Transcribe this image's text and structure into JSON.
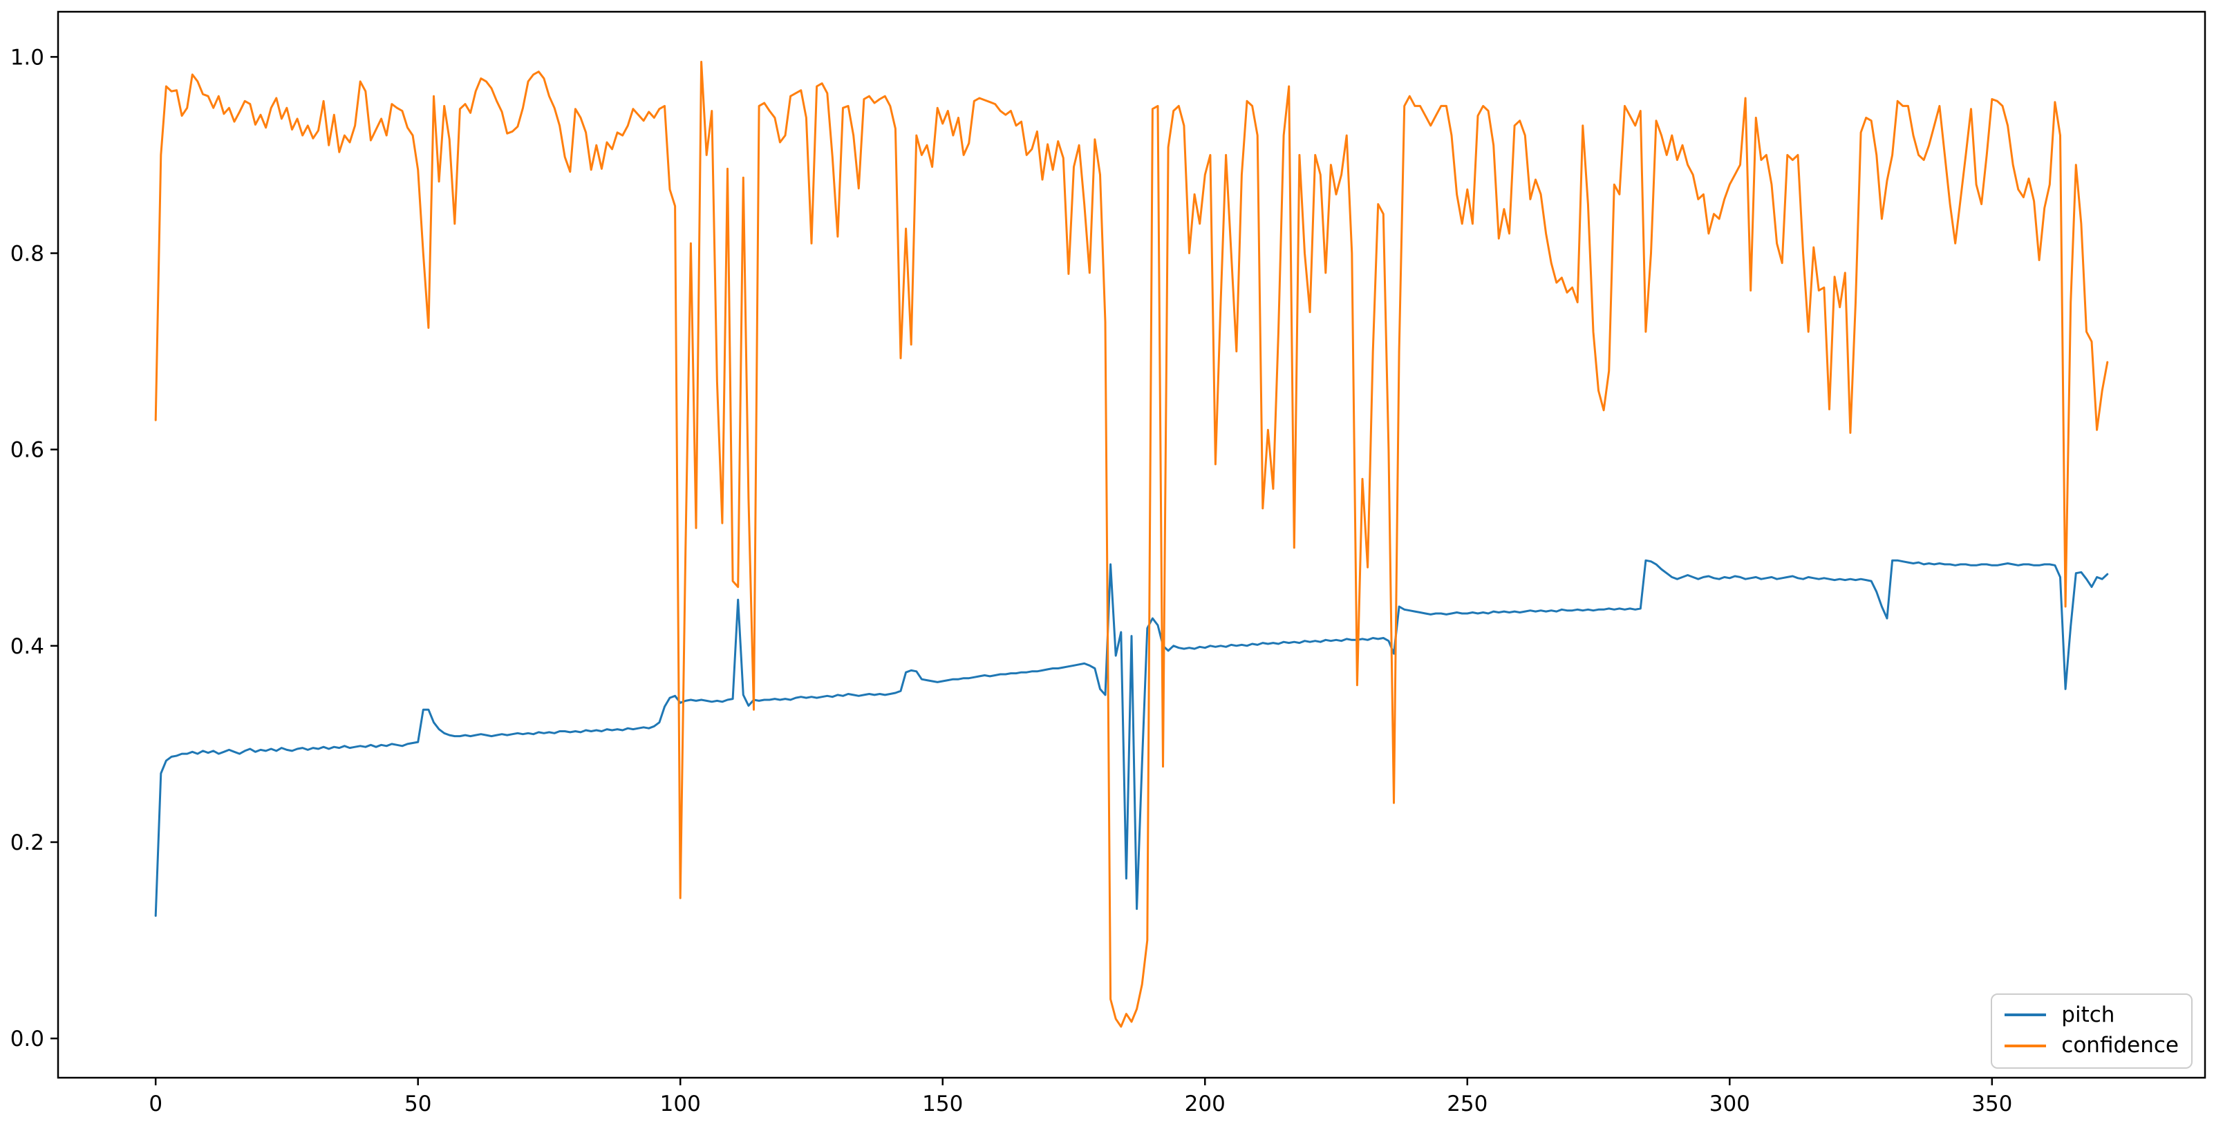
{
  "chart_data": {
    "type": "line",
    "title": "",
    "xlabel": "",
    "ylabel": "",
    "grid": false,
    "background_color": "#ffffff",
    "axes_edge_color": "#000000",
    "xlim": [
      -18.6,
      390.6
    ],
    "ylim": [
      -0.04,
      1.046
    ],
    "xticks": [
      {
        "v": 0,
        "label": "0"
      },
      {
        "v": 50,
        "label": "50"
      },
      {
        "v": 100,
        "label": "100"
      },
      {
        "v": 150,
        "label": "150"
      },
      {
        "v": 200,
        "label": "200"
      },
      {
        "v": 250,
        "label": "250"
      },
      {
        "v": 300,
        "label": "300"
      },
      {
        "v": 350,
        "label": "350"
      }
    ],
    "yticks": [
      {
        "v": 0.0,
        "label": "0.0"
      },
      {
        "v": 0.2,
        "label": "0.2"
      },
      {
        "v": 0.4,
        "label": "0.4"
      },
      {
        "v": 0.6,
        "label": "0.6"
      },
      {
        "v": 0.8,
        "label": "0.8"
      },
      {
        "v": 1.0,
        "label": "1.0"
      }
    ],
    "legend": {
      "location": "lower right"
    },
    "x": [
      0,
      1,
      2,
      3,
      4,
      5,
      6,
      7,
      8,
      9,
      10,
      11,
      12,
      13,
      14,
      15,
      16,
      17,
      18,
      19,
      20,
      21,
      22,
      23,
      24,
      25,
      26,
      27,
      28,
      29,
      30,
      31,
      32,
      33,
      34,
      35,
      36,
      37,
      38,
      39,
      40,
      41,
      42,
      43,
      44,
      45,
      46,
      47,
      48,
      49,
      50,
      51,
      52,
      53,
      54,
      55,
      56,
      57,
      58,
      59,
      60,
      61,
      62,
      63,
      64,
      65,
      66,
      67,
      68,
      69,
      70,
      71,
      72,
      73,
      74,
      75,
      76,
      77,
      78,
      79,
      80,
      81,
      82,
      83,
      84,
      85,
      86,
      87,
      88,
      89,
      90,
      91,
      92,
      93,
      94,
      95,
      96,
      97,
      98,
      99,
      100,
      101,
      102,
      103,
      104,
      105,
      106,
      107,
      108,
      109,
      110,
      111,
      112,
      113,
      114,
      115,
      116,
      117,
      118,
      119,
      120,
      121,
      122,
      123,
      124,
      125,
      126,
      127,
      128,
      129,
      130,
      131,
      132,
      133,
      134,
      135,
      136,
      137,
      138,
      139,
      140,
      141,
      142,
      143,
      144,
      145,
      146,
      147,
      148,
      149,
      150,
      151,
      152,
      153,
      154,
      155,
      156,
      157,
      158,
      159,
      160,
      161,
      162,
      163,
      164,
      165,
      166,
      167,
      168,
      169,
      170,
      171,
      172,
      173,
      174,
      175,
      176,
      177,
      178,
      179,
      180,
      181,
      182,
      183,
      184,
      185,
      186,
      187,
      188,
      189,
      190,
      191,
      192,
      193,
      194,
      195,
      196,
      197,
      198,
      199,
      200,
      201,
      202,
      203,
      204,
      205,
      206,
      207,
      208,
      209,
      210,
      211,
      212,
      213,
      214,
      215,
      216,
      217,
      218,
      219,
      220,
      221,
      222,
      223,
      224,
      225,
      226,
      227,
      228,
      229,
      230,
      231,
      232,
      233,
      234,
      235,
      236,
      237,
      238,
      239,
      240,
      241,
      242,
      243,
      244,
      245,
      246,
      247,
      248,
      249,
      250,
      251,
      252,
      253,
      254,
      255,
      256,
      257,
      258,
      259,
      260,
      261,
      262,
      263,
      264,
      265,
      266,
      267,
      268,
      269,
      270,
      271,
      272,
      273,
      274,
      275,
      276,
      277,
      278,
      279,
      280,
      281,
      282,
      283,
      284,
      285,
      286,
      287,
      288,
      289,
      290,
      291,
      292,
      293,
      294,
      295,
      296,
      297,
      298,
      299,
      300,
      301,
      302,
      303,
      304,
      305,
      306,
      307,
      308,
      309,
      310,
      311,
      312,
      313,
      314,
      315,
      316,
      317,
      318,
      319,
      320,
      321,
      322,
      323,
      324,
      325,
      326,
      327,
      328,
      329,
      330,
      331,
      332,
      333,
      334,
      335,
      336,
      337,
      338,
      339,
      340,
      341,
      342,
      343,
      344,
      345,
      346,
      347,
      348,
      349,
      350,
      351,
      352,
      353,
      354,
      355,
      356,
      357,
      358,
      359,
      360,
      361,
      362,
      363,
      364,
      365,
      366,
      367,
      368,
      369,
      370,
      371,
      372
    ],
    "series": [
      {
        "name": "pitch",
        "color": "#1f77b4",
        "values": [
          0.125,
          0.27,
          0.283,
          0.287,
          0.288,
          0.29,
          0.29,
          0.292,
          0.29,
          0.293,
          0.291,
          0.293,
          0.29,
          0.292,
          0.294,
          0.292,
          0.29,
          0.293,
          0.295,
          0.292,
          0.294,
          0.293,
          0.295,
          0.293,
          0.296,
          0.294,
          0.293,
          0.295,
          0.296,
          0.294,
          0.296,
          0.295,
          0.297,
          0.295,
          0.297,
          0.296,
          0.298,
          0.296,
          0.297,
          0.298,
          0.297,
          0.299,
          0.297,
          0.299,
          0.298,
          0.3,
          0.299,
          0.298,
          0.3,
          0.301,
          0.302,
          0.335,
          0.335,
          0.322,
          0.315,
          0.311,
          0.309,
          0.308,
          0.308,
          0.309,
          0.308,
          0.309,
          0.31,
          0.309,
          0.308,
          0.309,
          0.31,
          0.309,
          0.31,
          0.311,
          0.31,
          0.311,
          0.31,
          0.312,
          0.311,
          0.312,
          0.311,
          0.313,
          0.313,
          0.312,
          0.313,
          0.312,
          0.314,
          0.313,
          0.314,
          0.313,
          0.315,
          0.314,
          0.315,
          0.314,
          0.316,
          0.315,
          0.316,
          0.317,
          0.316,
          0.318,
          0.322,
          0.338,
          0.347,
          0.349,
          0.342,
          0.344,
          0.345,
          0.344,
          0.345,
          0.344,
          0.343,
          0.344,
          0.343,
          0.345,
          0.346,
          0.447,
          0.35,
          0.339,
          0.345,
          0.344,
          0.345,
          0.345,
          0.346,
          0.345,
          0.346,
          0.345,
          0.347,
          0.348,
          0.347,
          0.348,
          0.347,
          0.348,
          0.349,
          0.348,
          0.35,
          0.349,
          0.351,
          0.35,
          0.349,
          0.35,
          0.351,
          0.35,
          0.351,
          0.35,
          0.351,
          0.352,
          0.354,
          0.373,
          0.375,
          0.374,
          0.366,
          0.365,
          0.364,
          0.363,
          0.364,
          0.365,
          0.366,
          0.366,
          0.367,
          0.367,
          0.368,
          0.369,
          0.37,
          0.369,
          0.37,
          0.371,
          0.371,
          0.372,
          0.372,
          0.373,
          0.373,
          0.374,
          0.374,
          0.375,
          0.376,
          0.377,
          0.377,
          0.378,
          0.379,
          0.38,
          0.381,
          0.382,
          0.38,
          0.377,
          0.356,
          0.35,
          0.483,
          0.39,
          0.414,
          0.163,
          0.41,
          0.132,
          0.28,
          0.418,
          0.428,
          0.421,
          0.4,
          0.395,
          0.4,
          0.398,
          0.397,
          0.398,
          0.397,
          0.399,
          0.398,
          0.4,
          0.399,
          0.4,
          0.399,
          0.401,
          0.4,
          0.401,
          0.4,
          0.402,
          0.401,
          0.403,
          0.402,
          0.403,
          0.402,
          0.404,
          0.403,
          0.404,
          0.403,
          0.405,
          0.404,
          0.405,
          0.404,
          0.406,
          0.405,
          0.406,
          0.405,
          0.407,
          0.406,
          0.406,
          0.407,
          0.406,
          0.408,
          0.407,
          0.408,
          0.405,
          0.392,
          0.44,
          0.437,
          0.436,
          0.435,
          0.434,
          0.433,
          0.432,
          0.433,
          0.433,
          0.432,
          0.433,
          0.434,
          0.433,
          0.433,
          0.434,
          0.433,
          0.434,
          0.433,
          0.435,
          0.434,
          0.435,
          0.434,
          0.435,
          0.434,
          0.435,
          0.436,
          0.435,
          0.436,
          0.435,
          0.436,
          0.435,
          0.437,
          0.436,
          0.436,
          0.437,
          0.436,
          0.437,
          0.436,
          0.437,
          0.437,
          0.438,
          0.437,
          0.438,
          0.437,
          0.438,
          0.437,
          0.438,
          0.487,
          0.486,
          0.483,
          0.478,
          0.474,
          0.47,
          0.468,
          0.47,
          0.472,
          0.47,
          0.468,
          0.47,
          0.471,
          0.469,
          0.468,
          0.47,
          0.469,
          0.471,
          0.47,
          0.468,
          0.469,
          0.47,
          0.468,
          0.469,
          0.47,
          0.468,
          0.469,
          0.47,
          0.471,
          0.469,
          0.468,
          0.47,
          0.469,
          0.468,
          0.469,
          0.468,
          0.467,
          0.468,
          0.467,
          0.468,
          0.467,
          0.468,
          0.467,
          0.466,
          0.455,
          0.44,
          0.428,
          0.487,
          0.487,
          0.486,
          0.485,
          0.484,
          0.485,
          0.483,
          0.484,
          0.483,
          0.484,
          0.483,
          0.483,
          0.482,
          0.483,
          0.483,
          0.482,
          0.482,
          0.483,
          0.483,
          0.482,
          0.482,
          0.483,
          0.484,
          0.483,
          0.482,
          0.483,
          0.483,
          0.482,
          0.482,
          0.483,
          0.483,
          0.482,
          0.47,
          0.356,
          0.42,
          0.474,
          0.475,
          0.468,
          0.46,
          0.47,
          0.468,
          0.473
        ]
      },
      {
        "name": "confidence",
        "color": "#ff7f0e",
        "values": [
          0.63,
          0.9,
          0.97,
          0.965,
          0.966,
          0.94,
          0.948,
          0.982,
          0.975,
          0.962,
          0.96,
          0.948,
          0.96,
          0.942,
          0.948,
          0.934,
          0.944,
          0.955,
          0.952,
          0.931,
          0.941,
          0.928,
          0.948,
          0.958,
          0.937,
          0.948,
          0.926,
          0.937,
          0.92,
          0.93,
          0.917,
          0.925,
          0.955,
          0.91,
          0.941,
          0.903,
          0.92,
          0.913,
          0.93,
          0.975,
          0.965,
          0.915,
          0.926,
          0.937,
          0.92,
          0.952,
          0.948,
          0.945,
          0.928,
          0.92,
          0.885,
          0.8,
          0.724,
          0.96,
          0.873,
          0.95,
          0.916,
          0.83,
          0.947,
          0.952,
          0.943,
          0.965,
          0.978,
          0.975,
          0.968,
          0.955,
          0.944,
          0.922,
          0.924,
          0.929,
          0.948,
          0.975,
          0.982,
          0.985,
          0.978,
          0.96,
          0.948,
          0.93,
          0.898,
          0.883,
          0.947,
          0.938,
          0.923,
          0.885,
          0.91,
          0.886,
          0.913,
          0.906,
          0.923,
          0.92,
          0.93,
          0.947,
          0.941,
          0.935,
          0.944,
          0.938,
          0.947,
          0.95,
          0.865,
          0.848,
          0.143,
          0.5,
          0.81,
          0.52,
          0.995,
          0.9,
          0.945,
          0.669,
          0.525,
          0.886,
          0.466,
          0.46,
          0.877,
          0.55,
          0.335,
          0.95,
          0.953,
          0.945,
          0.938,
          0.913,
          0.92,
          0.96,
          0.963,
          0.966,
          0.938,
          0.81,
          0.97,
          0.973,
          0.963,
          0.898,
          0.817,
          0.948,
          0.95,
          0.92,
          0.866,
          0.957,
          0.96,
          0.953,
          0.957,
          0.96,
          0.95,
          0.927,
          0.693,
          0.825,
          0.707,
          0.92,
          0.9,
          0.91,
          0.888,
          0.948,
          0.932,
          0.945,
          0.92,
          0.938,
          0.9,
          0.912,
          0.955,
          0.958,
          0.956,
          0.954,
          0.952,
          0.945,
          0.941,
          0.945,
          0.93,
          0.934,
          0.9,
          0.906,
          0.924,
          0.875,
          0.911,
          0.885,
          0.914,
          0.897,
          0.779,
          0.888,
          0.91,
          0.85,
          0.78,
          0.916,
          0.88,
          0.73,
          0.04,
          0.02,
          0.012,
          0.025,
          0.017,
          0.03,
          0.055,
          0.1,
          0.947,
          0.95,
          0.277,
          0.908,
          0.945,
          0.95,
          0.93,
          0.8,
          0.86,
          0.83,
          0.88,
          0.9,
          0.585,
          0.75,
          0.9,
          0.8,
          0.7,
          0.88,
          0.955,
          0.95,
          0.92,
          0.54,
          0.62,
          0.56,
          0.72,
          0.92,
          0.97,
          0.5,
          0.9,
          0.8,
          0.74,
          0.9,
          0.88,
          0.78,
          0.89,
          0.86,
          0.88,
          0.92,
          0.8,
          0.36,
          0.57,
          0.48,
          0.7,
          0.85,
          0.84,
          0.6,
          0.24,
          0.7,
          0.95,
          0.96,
          0.95,
          0.95,
          0.94,
          0.93,
          0.94,
          0.95,
          0.95,
          0.92,
          0.86,
          0.83,
          0.865,
          0.83,
          0.94,
          0.95,
          0.945,
          0.91,
          0.815,
          0.845,
          0.82,
          0.93,
          0.935,
          0.92,
          0.855,
          0.875,
          0.86,
          0.82,
          0.79,
          0.77,
          0.775,
          0.76,
          0.765,
          0.75,
          0.93,
          0.85,
          0.72,
          0.66,
          0.64,
          0.68,
          0.87,
          0.86,
          0.95,
          0.94,
          0.93,
          0.945,
          0.72,
          0.8,
          0.935,
          0.92,
          0.9,
          0.92,
          0.895,
          0.91,
          0.89,
          0.88,
          0.855,
          0.86,
          0.82,
          0.84,
          0.835,
          0.855,
          0.87,
          0.88,
          0.89,
          0.958,
          0.762,
          0.938,
          0.895,
          0.9,
          0.87,
          0.81,
          0.79,
          0.9,
          0.895,
          0.9,
          0.8,
          0.72,
          0.806,
          0.762,
          0.765,
          0.641,
          0.776,
          0.745,
          0.78,
          0.617,
          0.75,
          0.923,
          0.938,
          0.935,
          0.9,
          0.835,
          0.874,
          0.9,
          0.955,
          0.95,
          0.95,
          0.92,
          0.9,
          0.895,
          0.91,
          0.93,
          0.95,
          0.9,
          0.85,
          0.81,
          0.855,
          0.9,
          0.947,
          0.87,
          0.85,
          0.9,
          0.957,
          0.955,
          0.95,
          0.93,
          0.89,
          0.865,
          0.857,
          0.876,
          0.853,
          0.793,
          0.846,
          0.87,
          0.954,
          0.92,
          0.44,
          0.75,
          0.89,
          0.83,
          0.72,
          0.71,
          0.62,
          0.66,
          0.689
        ]
      }
    ]
  }
}
